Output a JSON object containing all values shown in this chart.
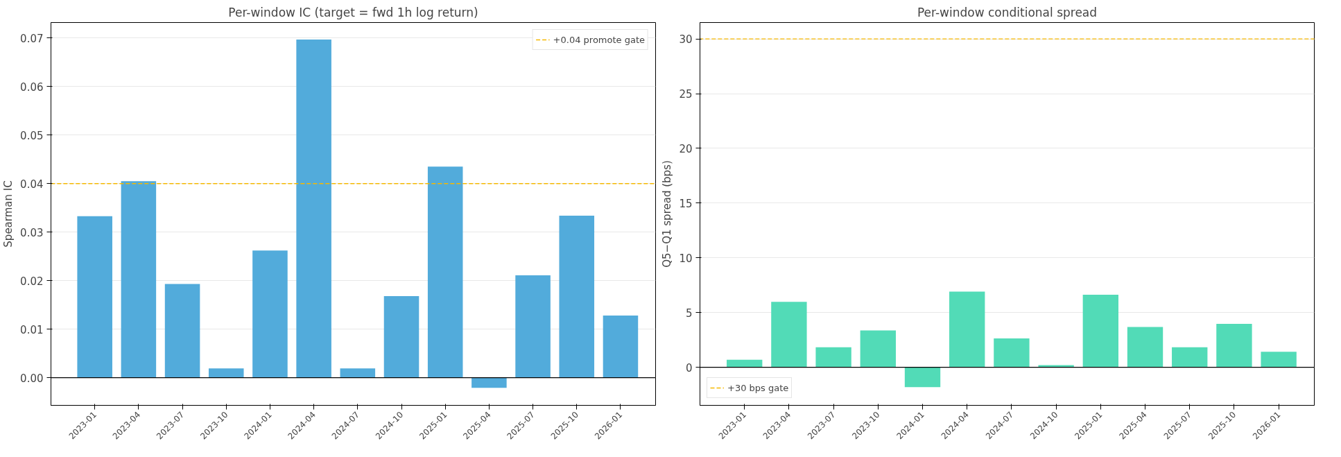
{
  "chart_data": [
    {
      "type": "bar",
      "title": "Per-window IC (target = fwd 1h log return)",
      "ylabel": "Spearman IC",
      "categories": [
        "2023-01",
        "2023-04",
        "2023-07",
        "2023-10",
        "2024-01",
        "2024-04",
        "2024-07",
        "2024-10",
        "2025-01",
        "2025-04",
        "2025-07",
        "2025-10",
        "2026-01"
      ],
      "series": [
        {
          "color": "#52abdb",
          "values": [
            0.0333,
            0.0405,
            0.0193,
            0.0019,
            0.0262,
            0.0697,
            0.0019,
            0.0168,
            0.0435,
            -0.0021,
            0.0211,
            0.0334,
            0.0128
          ]
        }
      ],
      "ylim": [
        -0.0057,
        0.0732
      ],
      "yticks": [
        {
          "value": 0,
          "label": "0.00"
        },
        {
          "value": 0.01,
          "label": "0.01"
        },
        {
          "value": 0.02,
          "label": "0.02"
        },
        {
          "value": 0.03,
          "label": "0.03"
        },
        {
          "value": 0.04,
          "label": "0.04"
        },
        {
          "value": 0.05,
          "label": "0.05"
        },
        {
          "value": 0.06,
          "label": "0.06"
        },
        {
          "value": 0.07,
          "label": "0.07"
        }
      ],
      "ref_lines": [
        {
          "axis": "y",
          "value": 0.04,
          "label": "+0.04 promote gate",
          "color": "#f5b800",
          "line_style": "dashed"
        },
        {
          "axis": "y",
          "value": 0,
          "color": "#000000",
          "line_style": "solid"
        }
      ],
      "grid": "y",
      "legend": "top right"
    },
    {
      "type": "bar",
      "title": "Per-window conditional spread",
      "ylabel": "Q5−Q1 spread (bps)",
      "categories": [
        "2023-01",
        "2023-04",
        "2023-07",
        "2023-10",
        "2024-01",
        "2024-04",
        "2024-07",
        "2024-10",
        "2025-01",
        "2025-04",
        "2025-07",
        "2025-10",
        "2026-01"
      ],
      "series": [
        {
          "color": "#52dbb7",
          "values": [
            0.69,
            5.98,
            1.82,
            3.36,
            -1.82,
            6.91,
            2.63,
            0.2,
            6.63,
            3.68,
            1.82,
            3.96,
            1.42
          ]
        }
      ],
      "ylim": [
        -3.48,
        31.5
      ],
      "yticks": [
        0,
        5,
        10,
        15,
        20,
        25,
        30
      ],
      "ref_lines": [
        {
          "axis": "y",
          "value": 30,
          "label": "+30 bps gate",
          "color": "#f5b800",
          "line_style": "dashed"
        },
        {
          "axis": "y",
          "value": 0,
          "color": "#000000",
          "line_style": "solid"
        }
      ],
      "grid": "y",
      "legend": "bottom left"
    }
  ]
}
